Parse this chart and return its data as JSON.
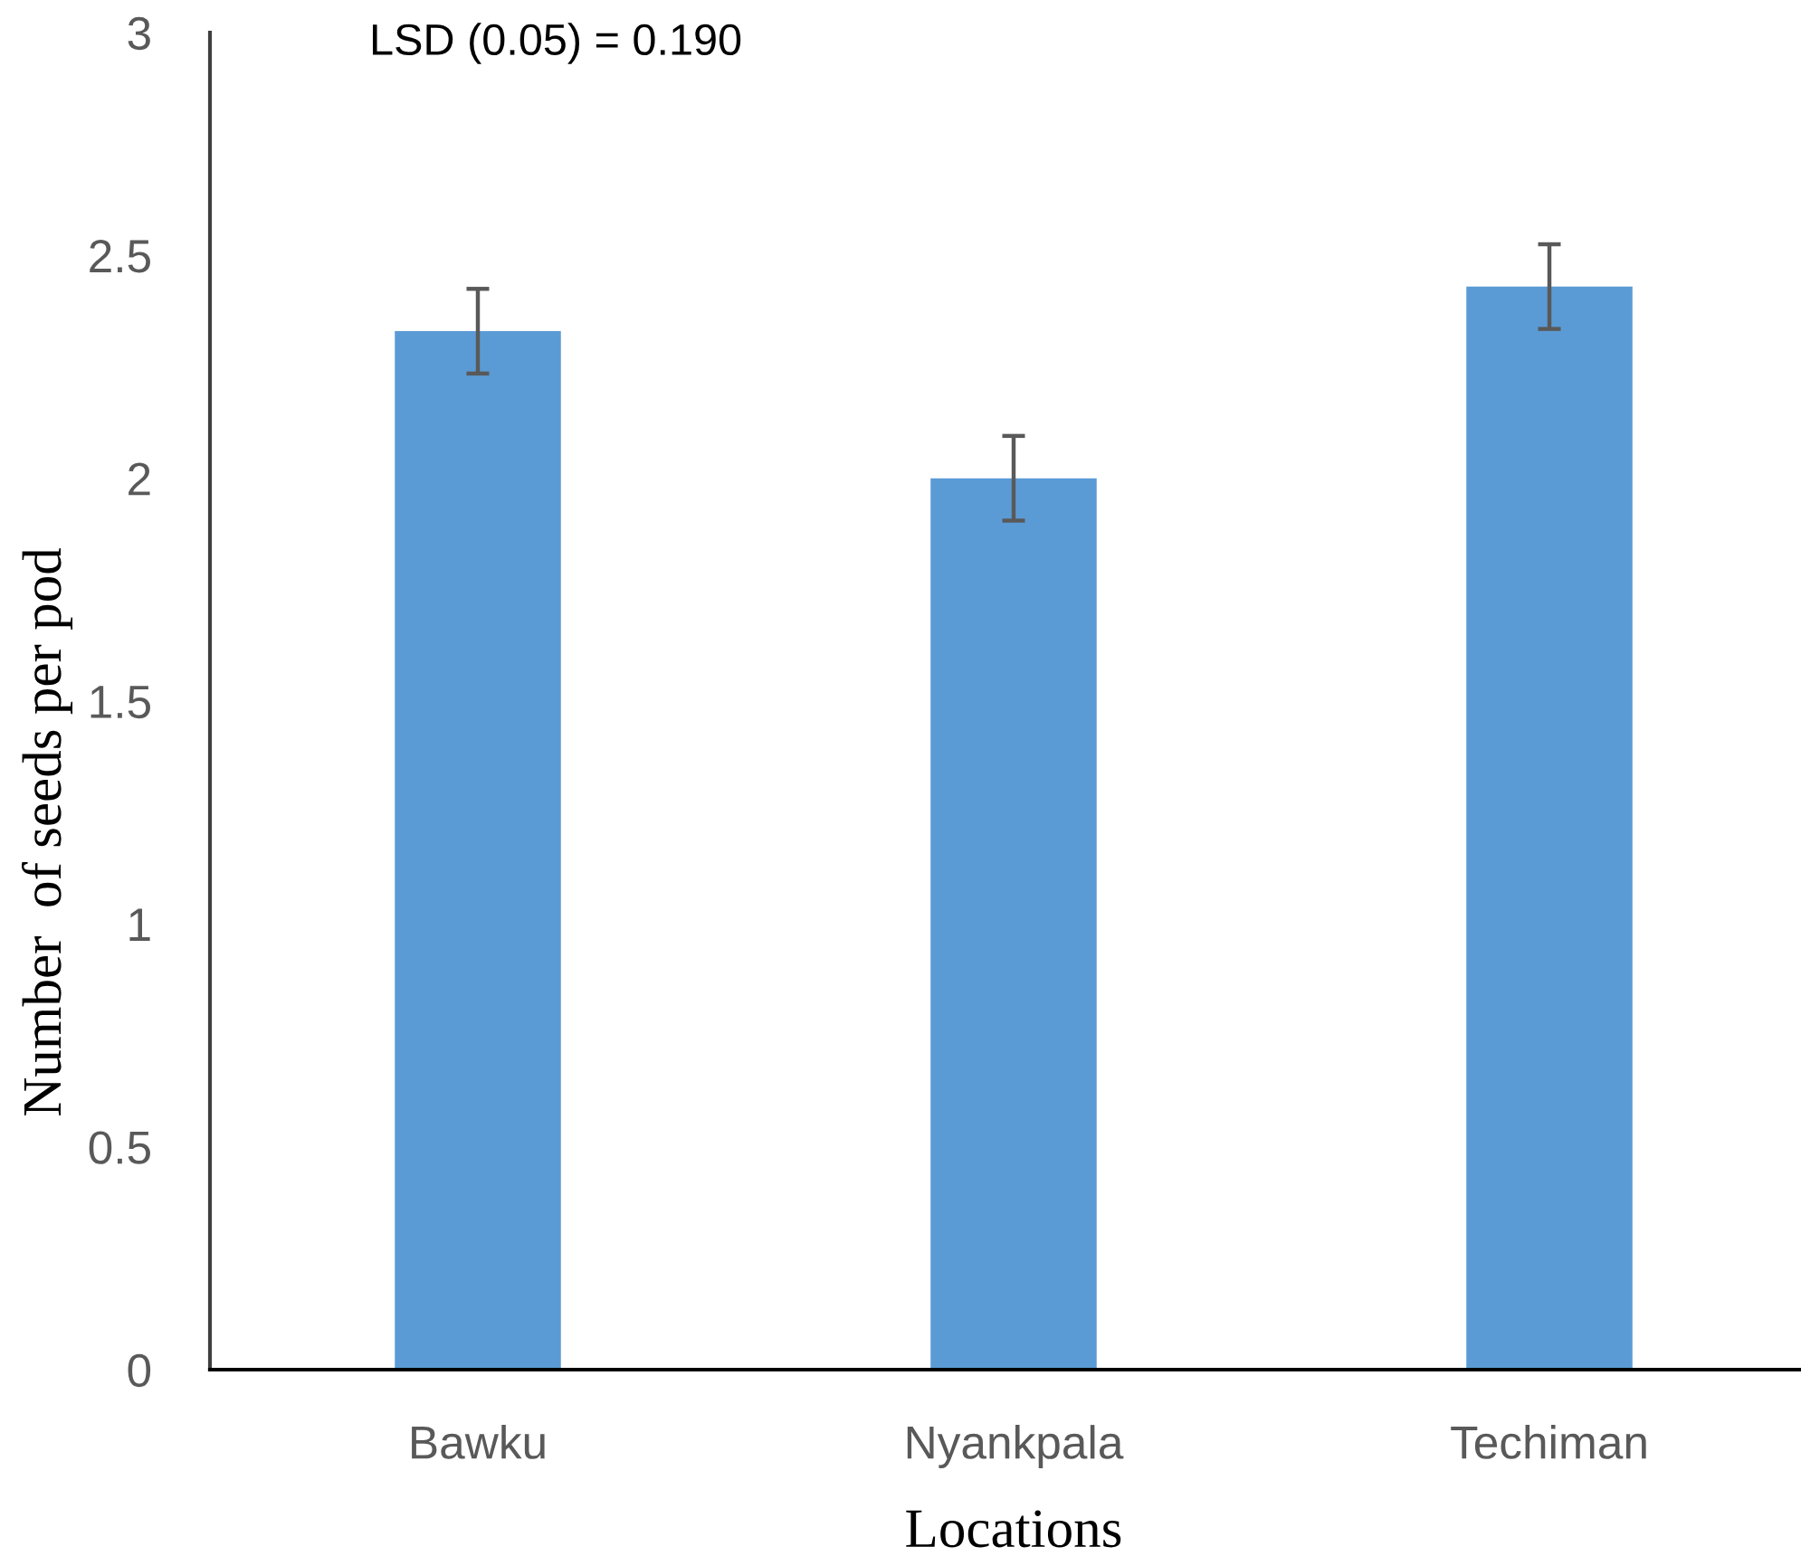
{
  "chart_data": {
    "type": "bar",
    "categories": [
      "Bawku",
      "Nyankpala",
      "Techiman"
    ],
    "values": [
      2.33,
      2.0,
      2.43
    ],
    "errors": [
      0.095,
      0.095,
      0.095
    ],
    "color": "#5b9bd5",
    "xlabel": "Locations",
    "ylabel": "Number  of seeds per pod",
    "ylim": [
      0,
      3
    ],
    "yticks": [
      0,
      0.5,
      1,
      1.5,
      2,
      2.5,
      3
    ],
    "annotations": [
      "LSD (0.05) = 0.190"
    ],
    "grid": false,
    "legend": false
  }
}
